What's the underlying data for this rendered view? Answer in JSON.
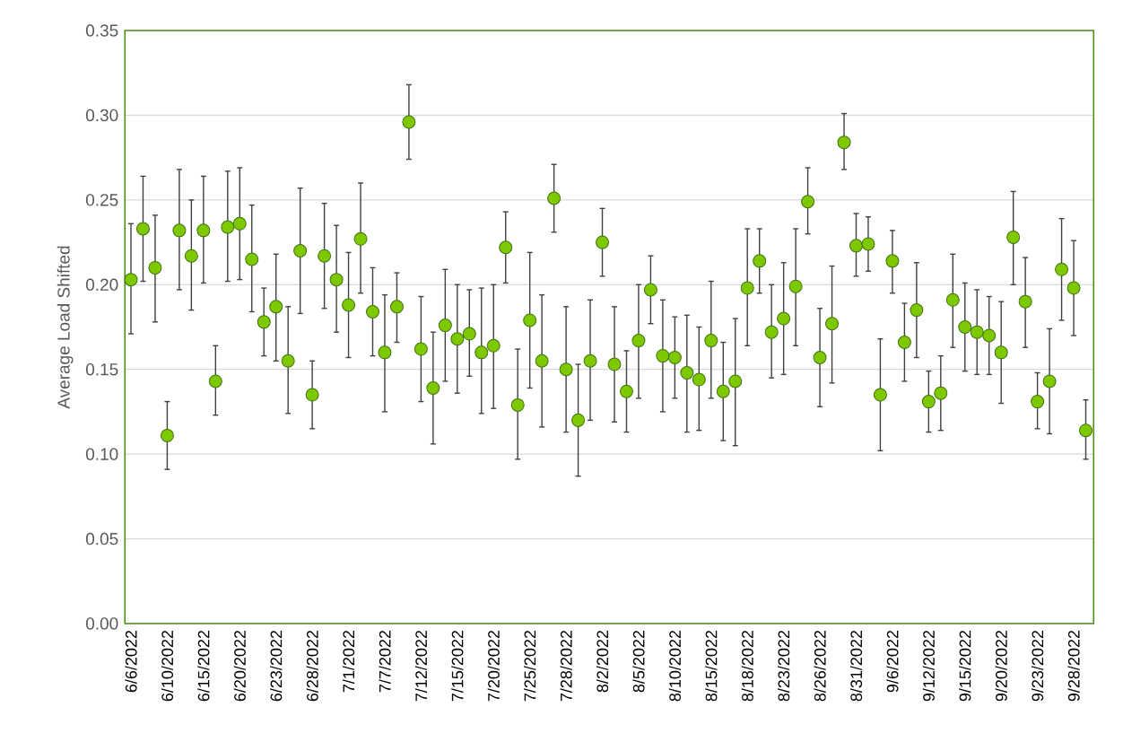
{
  "chart_data": {
    "type": "scatter",
    "ylabel": "Average Load Shifted",
    "categories": [
      "6/6/2022",
      null,
      null,
      "6/10/2022",
      null,
      null,
      "6/15/2022",
      null,
      null,
      "6/20/2022",
      null,
      null,
      "6/23/2022",
      null,
      null,
      "6/28/2022",
      null,
      null,
      "7/1/2022",
      null,
      null,
      "7/7/2022",
      null,
      null,
      "7/12/2022",
      null,
      null,
      "7/15/2022",
      null,
      null,
      "7/20/2022",
      null,
      null,
      "7/25/2022",
      null,
      null,
      "7/28/2022",
      null,
      null,
      "8/2/2022",
      null,
      null,
      "8/5/2022",
      null,
      null,
      "8/10/2022",
      null,
      null,
      "8/15/2022",
      null,
      null,
      "8/18/2022",
      null,
      null,
      "8/23/2022",
      null,
      null,
      "8/26/2022",
      null,
      null,
      "8/31/2022",
      null,
      null,
      "9/6/2022",
      null,
      null,
      "9/12/2022",
      null,
      null,
      "9/15/2022",
      null,
      null,
      "9/20/2022",
      null,
      null,
      "9/23/2022",
      null,
      null,
      "9/28/2022",
      null
    ],
    "values": [
      0.203,
      0.233,
      0.21,
      0.111,
      0.232,
      0.217,
      0.232,
      0.143,
      0.234,
      0.236,
      0.215,
      0.178,
      0.187,
      0.155,
      0.22,
      0.135,
      0.217,
      0.203,
      0.188,
      0.227,
      0.184,
      0.16,
      0.187,
      0.296,
      0.162,
      0.139,
      0.176,
      0.168,
      0.171,
      0.16,
      0.164,
      0.222,
      0.129,
      0.179,
      0.155,
      0.251,
      0.15,
      0.12,
      0.155,
      0.225,
      0.153,
      0.137,
      0.167,
      0.197,
      0.158,
      0.157,
      0.148,
      0.144,
      0.167,
      0.137,
      0.143,
      0.198,
      0.214,
      0.172,
      0.18,
      0.199,
      0.249,
      0.157,
      0.177,
      0.284,
      0.223,
      0.224,
      0.135,
      0.214,
      0.166,
      0.185,
      0.131,
      0.136,
      0.191,
      0.175,
      0.172,
      0.17,
      0.16,
      0.228,
      0.19,
      0.131,
      0.143,
      0.209,
      0.198,
      0.114
    ],
    "errors": [
      [
        0.171,
        0.236
      ],
      [
        0.202,
        0.264
      ],
      [
        0.178,
        0.241
      ],
      [
        0.091,
        0.131
      ],
      [
        0.197,
        0.268
      ],
      [
        0.185,
        0.25
      ],
      [
        0.201,
        0.264
      ],
      [
        0.123,
        0.164
      ],
      [
        0.202,
        0.267
      ],
      [
        0.203,
        0.269
      ],
      [
        0.184,
        0.247
      ],
      [
        0.158,
        0.198
      ],
      [
        0.155,
        0.218
      ],
      [
        0.124,
        0.187
      ],
      [
        0.183,
        0.257
      ],
      [
        0.115,
        0.155
      ],
      [
        0.186,
        0.248
      ],
      [
        0.172,
        0.235
      ],
      [
        0.157,
        0.219
      ],
      [
        0.195,
        0.26
      ],
      [
        0.158,
        0.21
      ],
      [
        0.125,
        0.194
      ],
      [
        0.166,
        0.207
      ],
      [
        0.274,
        0.318
      ],
      [
        0.131,
        0.193
      ],
      [
        0.106,
        0.172
      ],
      [
        0.143,
        0.209
      ],
      [
        0.136,
        0.2
      ],
      [
        0.146,
        0.197
      ],
      [
        0.124,
        0.198
      ],
      [
        0.127,
        0.2
      ],
      [
        0.201,
        0.243
      ],
      [
        0.097,
        0.162
      ],
      [
        0.139,
        0.219
      ],
      [
        0.116,
        0.194
      ],
      [
        0.231,
        0.271
      ],
      [
        0.113,
        0.187
      ],
      [
        0.087,
        0.153
      ],
      [
        0.12,
        0.191
      ],
      [
        0.205,
        0.245
      ],
      [
        0.119,
        0.187
      ],
      [
        0.113,
        0.161
      ],
      [
        0.133,
        0.2
      ],
      [
        0.177,
        0.217
      ],
      [
        0.125,
        0.191
      ],
      [
        0.133,
        0.181
      ],
      [
        0.113,
        0.182
      ],
      [
        0.114,
        0.175
      ],
      [
        0.133,
        0.202
      ],
      [
        0.108,
        0.166
      ],
      [
        0.105,
        0.18
      ],
      [
        0.164,
        0.233
      ],
      [
        0.195,
        0.233
      ],
      [
        0.145,
        0.2
      ],
      [
        0.147,
        0.213
      ],
      [
        0.164,
        0.233
      ],
      [
        0.23,
        0.269
      ],
      [
        0.128,
        0.186
      ],
      [
        0.142,
        0.211
      ],
      [
        0.268,
        0.301
      ],
      [
        0.205,
        0.242
      ],
      [
        0.208,
        0.24
      ],
      [
        0.102,
        0.168
      ],
      [
        0.195,
        0.232
      ],
      [
        0.143,
        0.189
      ],
      [
        0.157,
        0.213
      ],
      [
        0.113,
        0.149
      ],
      [
        0.114,
        0.158
      ],
      [
        0.163,
        0.218
      ],
      [
        0.149,
        0.201
      ],
      [
        0.147,
        0.197
      ],
      [
        0.147,
        0.193
      ],
      [
        0.13,
        0.19
      ],
      [
        0.2,
        0.255
      ],
      [
        0.163,
        0.216
      ],
      [
        0.115,
        0.148
      ],
      [
        0.112,
        0.174
      ],
      [
        0.179,
        0.239
      ],
      [
        0.17,
        0.226
      ],
      [
        0.097,
        0.132
      ]
    ],
    "color": "#7ec800",
    "marker": "circle",
    "grid": "y",
    "ylim": [
      0,
      0.35
    ],
    "yticks": [
      {
        "value": 0,
        "label": "0.00"
      },
      {
        "value": 0.05,
        "label": "0.05"
      },
      {
        "value": 0.1,
        "label": "0.10"
      },
      {
        "value": 0.15,
        "label": "0.15"
      },
      {
        "value": 0.2,
        "label": "0.20"
      },
      {
        "value": 0.25,
        "label": "0.25"
      },
      {
        "value": 0.3,
        "label": "0.30"
      },
      {
        "value": 0.35,
        "label": "0.35"
      }
    ]
  }
}
